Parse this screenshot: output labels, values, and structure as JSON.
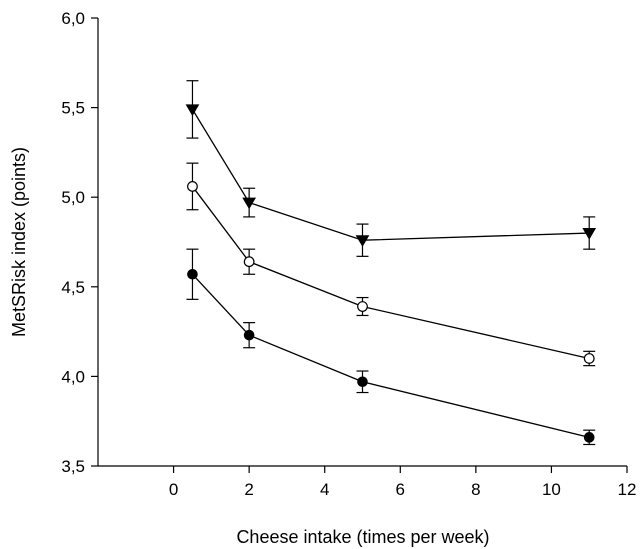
{
  "chart_data": {
    "type": "line",
    "title": "",
    "xlabel": "Cheese intake (times per week)",
    "ylabel": "MetSRisk index (points)",
    "xlim": [
      -2,
      12
    ],
    "ylim": [
      3.5,
      6.0
    ],
    "xticks": [
      0,
      2,
      4,
      6,
      8,
      10,
      12
    ],
    "xtick_labels": [
      "0",
      "2",
      "4",
      "6",
      "8",
      "10",
      "12"
    ],
    "yticks": [
      3.5,
      4.0,
      4.5,
      5.0,
      5.5,
      6.0
    ],
    "ytick_labels": [
      "3,5",
      "4,0",
      "4,5",
      "5,0",
      "5,5",
      "6,0"
    ],
    "grid": false,
    "legend": "none",
    "x": [
      0.5,
      2,
      5,
      11
    ],
    "series": [
      {
        "marker": "triangle-down-filled",
        "values": [
          5.49,
          4.97,
          4.76,
          4.8
        ],
        "err": [
          0.16,
          0.08,
          0.09,
          0.09
        ]
      },
      {
        "marker": "circle-open",
        "values": [
          5.06,
          4.64,
          4.39,
          4.1
        ],
        "err": [
          0.13,
          0.07,
          0.05,
          0.04
        ]
      },
      {
        "marker": "circle-filled",
        "values": [
          4.57,
          4.23,
          3.97,
          3.66
        ],
        "err": [
          0.14,
          0.07,
          0.06,
          0.04
        ]
      }
    ]
  }
}
